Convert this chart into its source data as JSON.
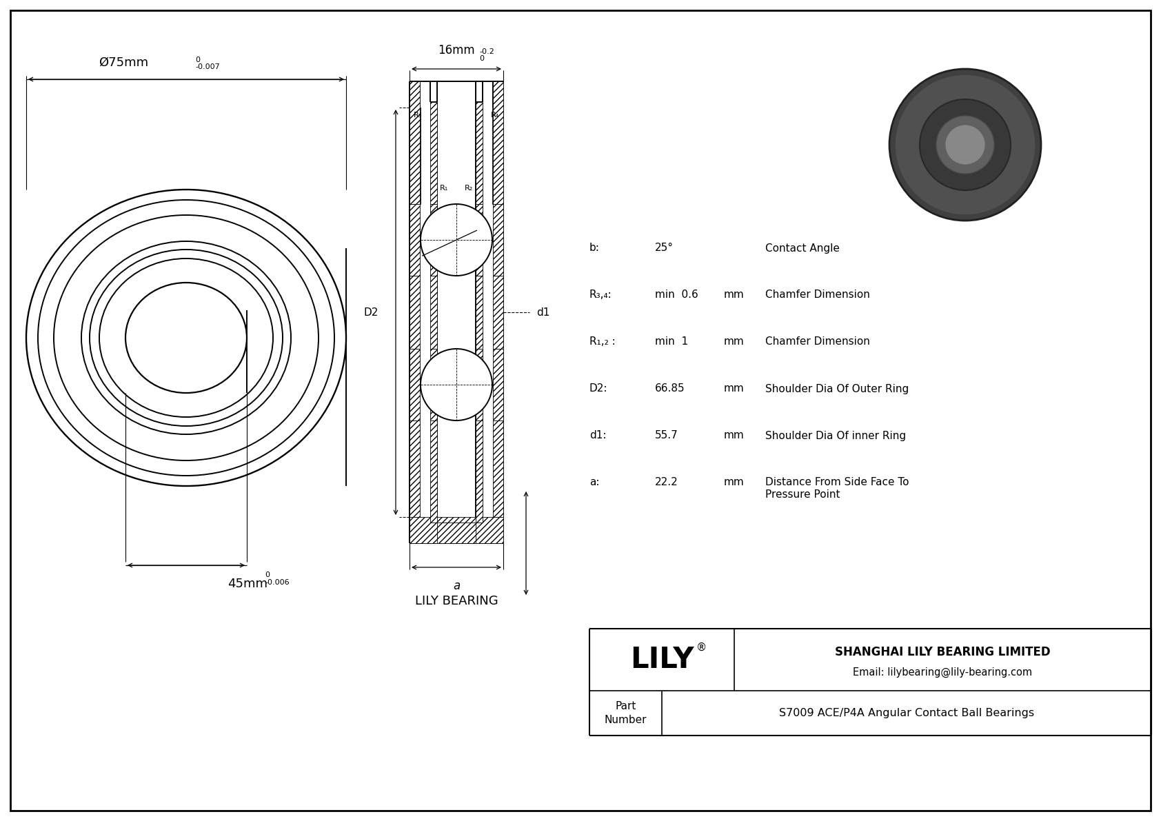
{
  "bg_color": "#ffffff",
  "line_color": "#000000",
  "title_company": "SHANGHAI LILY BEARING LIMITED",
  "title_email": "Email: lilybearing@lily-bearing.com",
  "part_number": "S7009 ACE/P4A Angular Contact Ball Bearings",
  "outer_dim_label": "Ø75mm",
  "outer_dim_tol_upper": "0",
  "outer_dim_tol_lower": "-0.007",
  "inner_dim_label": "45mm",
  "inner_dim_tol_upper": "0",
  "inner_dim_tol_lower": "-0.006",
  "width_dim_label": "16mm",
  "width_dim_tol_upper": "0",
  "width_dim_tol_lower": "-0.2",
  "specs": [
    {
      "label": "b:",
      "value": "25°",
      "unit": "",
      "desc": "Contact Angle"
    },
    {
      "label": "R₃,₄:",
      "value": "min  0.6",
      "unit": "mm",
      "desc": "Chamfer Dimension"
    },
    {
      "label": "R₁,₂ :",
      "value": "min  1",
      "unit": "mm",
      "desc": "Chamfer Dimension"
    },
    {
      "label": "D2:",
      "value": "66.85",
      "unit": "mm",
      "desc": "Shoulder Dia Of Outer Ring"
    },
    {
      "label": "d1:",
      "value": "55.7",
      "unit": "mm",
      "desc": "Shoulder Dia Of inner Ring"
    },
    {
      "label": "a:",
      "value": "22.2",
      "unit": "mm",
      "desc": "Distance From Side Face To\nPressure Point"
    }
  ],
  "lily_bearing_label": "LILY BEARING"
}
